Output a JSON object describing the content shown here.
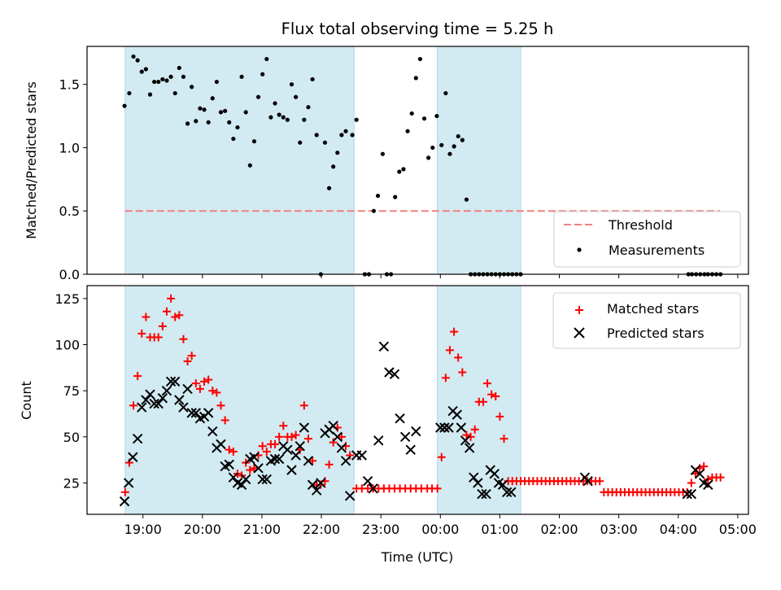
{
  "chart_data": [
    {
      "type": "scatter",
      "title": "Flux total observing time = 5.25 h",
      "xlabel": "",
      "ylabel": "Matched/Predicted stars",
      "x_unit": "hours (UTC, continuing past midnight: 24 = 00:00, 28 = 04:00)",
      "xlim": [
        18.06,
        29.18
      ],
      "ylim": [
        0,
        1.8
      ],
      "yticks": [
        "0.0",
        "0.5",
        "1.0",
        "1.5"
      ],
      "xticks_positions": [
        19,
        20,
        21,
        22,
        23,
        24,
        25,
        26,
        27,
        28,
        29
      ],
      "grid": false,
      "legend_position": "lower right",
      "shaded_intervals": [
        [
          18.7,
          22.55
        ],
        [
          23.95,
          25.35
        ]
      ],
      "shade_color": "#add8e6",
      "threshold": {
        "label": "Threshold",
        "value": 0.5,
        "color": "#f08080",
        "x_range": [
          18.7,
          29.3
        ]
      },
      "series": [
        {
          "name": "Measurements",
          "color": "#000000",
          "marker": "dot",
          "x": [
            18.69,
            18.77,
            18.84,
            18.91,
            18.98,
            19.05,
            19.12,
            19.19,
            19.26,
            19.33,
            19.4,
            19.47,
            19.54,
            19.61,
            19.68,
            19.75,
            19.82,
            19.89,
            19.96,
            20.03,
            20.1,
            20.17,
            20.24,
            20.31,
            20.38,
            20.45,
            20.52,
            20.59,
            20.66,
            20.73,
            20.8,
            20.87,
            20.94,
            21.01,
            21.08,
            21.15,
            21.22,
            21.29,
            21.36,
            21.43,
            21.5,
            21.57,
            21.64,
            21.71,
            21.78,
            21.85,
            21.92,
            21.99,
            22.06,
            22.13,
            22.2,
            22.27,
            22.34,
            22.41,
            22.52,
            22.59,
            22.73,
            22.8,
            22.88,
            22.95,
            23.03,
            23.1,
            23.17,
            23.24,
            23.31,
            23.38,
            23.45,
            23.52,
            23.59,
            23.66,
            23.73,
            23.8,
            23.87,
            23.94,
            24.02,
            24.09,
            24.16,
            24.23,
            24.3,
            24.37,
            24.44,
            24.51,
            24.58,
            24.65,
            24.72,
            24.79,
            24.86,
            24.93,
            25.0,
            25.07,
            25.14,
            25.21,
            25.28,
            25.35,
            28.17,
            28.23,
            28.3,
            28.37,
            28.44,
            28.5,
            28.57,
            28.64,
            28.71
          ],
          "y": [
            1.33,
            1.43,
            1.72,
            1.69,
            1.6,
            1.62,
            1.42,
            1.52,
            1.52,
            1.54,
            1.53,
            1.56,
            1.43,
            1.63,
            1.56,
            1.19,
            1.48,
            1.21,
            1.31,
            1.3,
            1.2,
            1.39,
            1.52,
            1.28,
            1.29,
            1.2,
            1.07,
            1.16,
            1.56,
            1.28,
            0.86,
            1.05,
            1.4,
            1.58,
            1.7,
            1.24,
            1.35,
            1.26,
            1.24,
            1.22,
            1.5,
            1.4,
            1.04,
            1.22,
            1.32,
            1.54,
            1.1,
            0.0,
            1.04,
            0.68,
            0.85,
            0.96,
            1.1,
            1.13,
            1.1,
            1.22,
            0.0,
            0.0,
            0.5,
            0.62,
            0.95,
            0.0,
            0.0,
            0.61,
            0.81,
            0.83,
            1.13,
            1.27,
            1.55,
            1.7,
            1.23,
            0.92,
            1.0,
            1.25,
            1.02,
            1.43,
            0.95,
            1.01,
            1.09,
            1.06,
            0.59,
            0.0,
            0.0,
            0.0,
            0.0,
            0.0,
            0.0,
            0.0,
            0.0,
            0.0,
            0.0,
            0.0,
            0.0,
            0.0,
            0.0,
            0.0,
            0.0,
            0.0,
            0.0,
            0.0,
            0.0,
            0.0,
            0.0
          ]
        }
      ]
    },
    {
      "type": "scatter",
      "title": "",
      "xlabel": "Time (UTC)",
      "ylabel": "Count",
      "xlim": [
        18.06,
        29.18
      ],
      "ylim": [
        8,
        132
      ],
      "yticks": [
        "25",
        "50",
        "75",
        "100",
        "125"
      ],
      "xticks": [
        "19:00",
        "20:00",
        "21:00",
        "22:00",
        "23:00",
        "00:00",
        "01:00",
        "02:00",
        "03:00",
        "04:00",
        "05:00"
      ],
      "xticks_positions": [
        19,
        20,
        21,
        22,
        23,
        24,
        25,
        26,
        27,
        28,
        29
      ],
      "grid": false,
      "legend_position": "upper right",
      "shaded_intervals": [
        [
          18.7,
          22.55
        ],
        [
          23.95,
          25.35
        ]
      ],
      "shade_color": "#add8e6",
      "series": [
        {
          "name": "Matched stars",
          "color": "#ff0000",
          "marker": "plus",
          "x": [
            18.7,
            18.77,
            18.84,
            18.91,
            18.98,
            19.05,
            19.12,
            19.19,
            19.26,
            19.33,
            19.4,
            19.47,
            19.54,
            19.61,
            19.68,
            19.75,
            19.82,
            19.89,
            19.96,
            20.03,
            20.1,
            20.17,
            20.24,
            20.31,
            20.38,
            20.45,
            20.52,
            20.59,
            20.66,
            20.73,
            20.8,
            20.87,
            20.94,
            21.01,
            21.08,
            21.15,
            21.22,
            21.29,
            21.36,
            21.43,
            21.5,
            21.57,
            21.64,
            21.71,
            21.78,
            21.85,
            21.92,
            21.99,
            22.06,
            22.13,
            22.2,
            22.27,
            22.34,
            22.41,
            22.48,
            22.59,
            22.68,
            22.78,
            22.87,
            22.96,
            23.05,
            23.14,
            23.23,
            23.32,
            23.41,
            23.5,
            23.59,
            23.68,
            23.78,
            23.86,
            23.95,
            24.02,
            24.09,
            24.16,
            24.23,
            24.3,
            24.37,
            24.44,
            24.51,
            24.58,
            24.65,
            24.72,
            24.79,
            24.86,
            24.93,
            25.0,
            25.07,
            25.14,
            25.21,
            25.28,
            25.35,
            25.42,
            25.49,
            25.56,
            25.63,
            25.7,
            25.77,
            25.84,
            25.91,
            25.98,
            26.05,
            26.12,
            26.19,
            26.26,
            26.33,
            26.4,
            26.47,
            26.54,
            26.61,
            26.68,
            26.75,
            26.82,
            26.89,
            26.96,
            27.03,
            27.1,
            27.17,
            27.24,
            27.31,
            27.38,
            27.45,
            27.52,
            27.59,
            27.66,
            27.73,
            27.8,
            27.87,
            27.94,
            28.01,
            28.08,
            28.15,
            28.22,
            28.29,
            28.36,
            28.43,
            28.5,
            28.57,
            28.64,
            28.71
          ],
          "y": [
            20,
            36,
            67,
            83,
            106,
            115,
            104,
            104,
            104,
            110,
            118,
            125,
            115,
            116,
            103,
            91,
            94,
            79,
            76,
            80,
            81,
            75,
            74,
            67,
            59,
            43,
            42,
            30,
            29,
            36,
            32,
            33,
            40,
            45,
            42,
            46,
            46,
            50,
            56,
            50,
            50,
            51,
            43,
            67,
            49,
            37,
            24,
            24,
            26,
            35,
            47,
            55,
            50,
            45,
            40,
            22,
            22,
            22,
            22,
            22,
            22,
            22,
            22,
            22,
            22,
            22,
            22,
            22,
            22,
            22,
            22,
            39,
            82,
            97,
            107,
            93,
            85,
            51,
            50,
            54,
            69,
            69,
            79,
            73,
            72,
            61,
            49,
            26,
            26,
            26,
            26,
            26,
            26,
            26,
            26,
            26,
            26,
            26,
            26,
            26,
            26,
            26,
            26,
            26,
            26,
            26,
            26,
            26,
            26,
            26,
            20,
            20,
            20,
            20,
            20,
            20,
            20,
            20,
            20,
            20,
            20,
            20,
            20,
            20,
            20,
            20,
            20,
            20,
            20,
            20,
            20,
            25,
            30,
            33,
            34,
            27,
            28,
            28,
            28
          ],
          "x_fix": []
        },
        {
          "name": "Predicted stars",
          "color": "#000000",
          "marker": "x",
          "x": [
            18.69,
            18.76,
            18.83,
            18.91,
            18.98,
            19.05,
            19.12,
            19.19,
            19.26,
            19.33,
            19.4,
            19.47,
            19.54,
            19.61,
            19.68,
            19.75,
            19.82,
            19.89,
            19.96,
            20.03,
            20.1,
            20.17,
            20.24,
            20.31,
            20.38,
            20.45,
            20.52,
            20.59,
            20.66,
            20.73,
            20.8,
            20.87,
            20.94,
            21.01,
            21.08,
            21.15,
            21.22,
            21.29,
            21.36,
            21.43,
            21.5,
            21.57,
            21.64,
            21.71,
            21.78,
            21.85,
            21.92,
            21.99,
            22.06,
            22.13,
            22.2,
            22.27,
            22.34,
            22.41,
            22.48,
            22.59,
            22.68,
            22.78,
            22.87,
            22.96,
            23.05,
            23.14,
            23.23,
            23.32,
            23.41,
            23.5,
            23.59,
            24.0,
            24.07,
            24.14,
            24.21,
            24.28,
            24.35,
            24.42,
            24.49,
            24.56,
            24.63,
            24.7,
            24.77,
            24.84,
            24.91,
            24.98,
            25.05,
            25.12,
            25.19,
            26.43,
            26.48,
            28.15,
            28.22,
            28.29,
            28.36,
            28.43,
            28.5
          ],
          "y": [
            15,
            25,
            39,
            49,
            66,
            70,
            73,
            68,
            68,
            71,
            75,
            80,
            80,
            70,
            66,
            76,
            63,
            63,
            60,
            61,
            63,
            53,
            44,
            46,
            34,
            35,
            28,
            25,
            24,
            27,
            38,
            39,
            33,
            27,
            27,
            37,
            38,
            38,
            45,
            43,
            32,
            40,
            45,
            55,
            37,
            24,
            21,
            25,
            52,
            54,
            56,
            50,
            44,
            37,
            18,
            40,
            40,
            26,
            22,
            48,
            99,
            85,
            84,
            60,
            50,
            43,
            53,
            55,
            55,
            55,
            64,
            62,
            55,
            48,
            44,
            28,
            25,
            19,
            19,
            32,
            30,
            25,
            24,
            20,
            20,
            28,
            26,
            19,
            19,
            32,
            30,
            25,
            24
          ],
          "x_fix": []
        }
      ]
    }
  ]
}
